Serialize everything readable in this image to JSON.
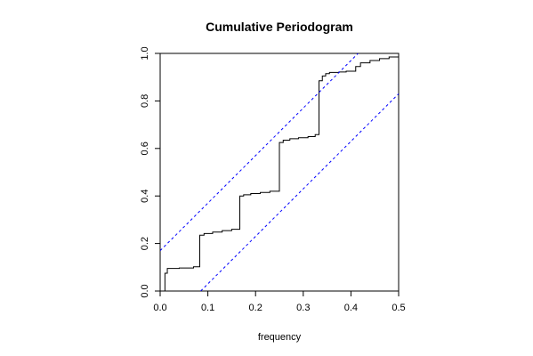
{
  "chart_data": {
    "type": "line",
    "title": "Cumulative Periodogram",
    "xlabel": "frequency",
    "ylabel": "",
    "xlim": [
      0,
      0.5
    ],
    "ylim": [
      0,
      1
    ],
    "grid": false,
    "x_ticks": [
      "0.0",
      "0.1",
      "0.2",
      "0.3",
      "0.4",
      "0.5"
    ],
    "y_ticks": [
      "0.0",
      "0.2",
      "0.4",
      "0.6",
      "0.8",
      "1.0"
    ],
    "series": [
      {
        "style": "step",
        "color": "#000000",
        "points": [
          [
            0.0,
            0.0
          ],
          [
            0.01,
            0.0
          ],
          [
            0.01,
            0.075
          ],
          [
            0.015,
            0.075
          ],
          [
            0.015,
            0.095
          ],
          [
            0.04,
            0.095
          ],
          [
            0.04,
            0.097
          ],
          [
            0.07,
            0.097
          ],
          [
            0.07,
            0.102
          ],
          [
            0.083,
            0.102
          ],
          [
            0.083,
            0.235
          ],
          [
            0.092,
            0.235
          ],
          [
            0.092,
            0.242
          ],
          [
            0.11,
            0.242
          ],
          [
            0.11,
            0.248
          ],
          [
            0.13,
            0.248
          ],
          [
            0.13,
            0.254
          ],
          [
            0.15,
            0.254
          ],
          [
            0.15,
            0.26
          ],
          [
            0.167,
            0.26
          ],
          [
            0.167,
            0.4
          ],
          [
            0.175,
            0.4
          ],
          [
            0.175,
            0.405
          ],
          [
            0.19,
            0.405
          ],
          [
            0.19,
            0.41
          ],
          [
            0.21,
            0.41
          ],
          [
            0.21,
            0.415
          ],
          [
            0.23,
            0.415
          ],
          [
            0.23,
            0.42
          ],
          [
            0.25,
            0.42
          ],
          [
            0.25,
            0.625
          ],
          [
            0.258,
            0.625
          ],
          [
            0.258,
            0.635
          ],
          [
            0.272,
            0.635
          ],
          [
            0.272,
            0.641
          ],
          [
            0.29,
            0.641
          ],
          [
            0.29,
            0.645
          ],
          [
            0.31,
            0.645
          ],
          [
            0.31,
            0.65
          ],
          [
            0.325,
            0.65
          ],
          [
            0.325,
            0.658
          ],
          [
            0.333,
            0.658
          ],
          [
            0.333,
            0.885
          ],
          [
            0.34,
            0.885
          ],
          [
            0.34,
            0.905
          ],
          [
            0.347,
            0.905
          ],
          [
            0.347,
            0.915
          ],
          [
            0.355,
            0.915
          ],
          [
            0.355,
            0.92
          ],
          [
            0.375,
            0.92
          ],
          [
            0.375,
            0.922
          ],
          [
            0.39,
            0.922
          ],
          [
            0.39,
            0.925
          ],
          [
            0.41,
            0.925
          ],
          [
            0.41,
            0.945
          ],
          [
            0.42,
            0.945
          ],
          [
            0.42,
            0.96
          ],
          [
            0.44,
            0.96
          ],
          [
            0.44,
            0.97
          ],
          [
            0.46,
            0.97
          ],
          [
            0.46,
            0.978
          ],
          [
            0.48,
            0.978
          ],
          [
            0.48,
            0.985
          ],
          [
            0.5,
            0.985
          ]
        ]
      },
      {
        "style": "dashed",
        "color": "#0000ff",
        "points": [
          [
            0.0,
            0.17
          ],
          [
            0.415,
            1.0
          ]
        ]
      },
      {
        "style": "dashed",
        "color": "#0000ff",
        "points": [
          [
            0.085,
            0.0
          ],
          [
            0.5,
            0.83
          ]
        ]
      }
    ]
  }
}
